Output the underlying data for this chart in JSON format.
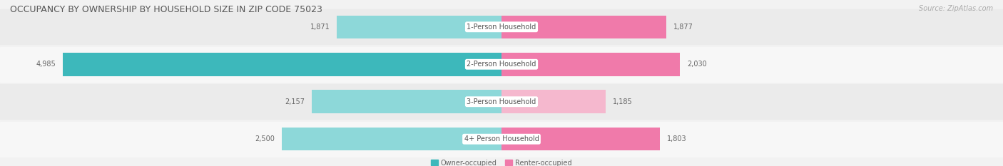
{
  "title": "OCCUPANCY BY OWNERSHIP BY HOUSEHOLD SIZE IN ZIP CODE 75023",
  "source": "Source: ZipAtlas.com",
  "categories": [
    "1-Person Household",
    "2-Person Household",
    "3-Person Household",
    "4+ Person Household"
  ],
  "owner_values": [
    1871,
    4985,
    2157,
    2500
  ],
  "renter_values": [
    1877,
    2030,
    1185,
    1803
  ],
  "owner_color_strong": "#3db8bb",
  "owner_color_light": "#8dd8d9",
  "renter_color_strong": "#f07aaa",
  "renter_color_light": "#f5b8ce",
  "bg_color": "#f2f2f2",
  "row_bg_even": "#ebebeb",
  "row_bg_odd": "#f7f7f7",
  "label_bg_color": "#ffffff",
  "axis_max": 5000,
  "legend_owner": "Owner-occupied",
  "legend_renter": "Renter-occupied",
  "title_fontsize": 9,
  "source_fontsize": 7,
  "bar_label_fontsize": 7,
  "category_fontsize": 7,
  "axis_fontsize": 7.5
}
